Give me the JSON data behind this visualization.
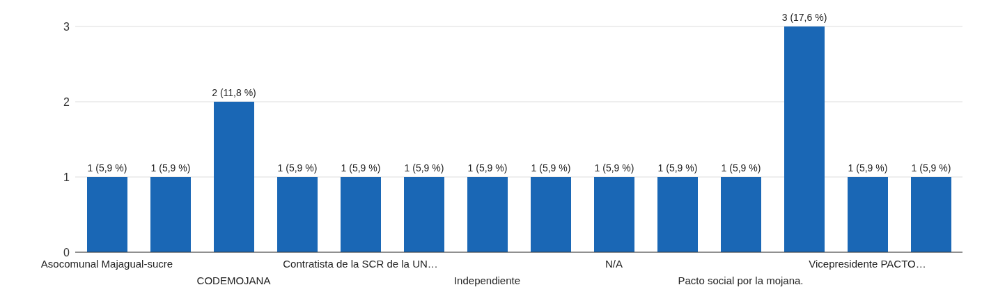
{
  "chart_data": {
    "type": "bar",
    "categories": [
      "Asocomunal Majagual-sucre",
      null,
      "CODEMOJANA",
      null,
      "Contratista de la SCR de la UN…",
      null,
      "Independiente",
      null,
      "N/A",
      null,
      "Pacto social por la mojana.",
      null,
      "Vicepresidente PACTO…",
      null
    ],
    "values": [
      1,
      1,
      2,
      1,
      1,
      1,
      1,
      1,
      1,
      1,
      1,
      3,
      1,
      1
    ],
    "value_labels": [
      "1 (5,9 %)",
      "1 (5,9 %)",
      "2 (11,8 %)",
      "1 (5,9 %)",
      "1 (5,9 %)",
      "1 (5,9 %)",
      "1 (5,9 %)",
      "1 (5,9 %)",
      "1 (5,9 %)",
      "1 (5,9 %)",
      "1 (5,9 %)",
      "3 (17,6 %)",
      "1 (5,9 %)",
      "1 (5,9 %)"
    ],
    "color": "#1a67b5",
    "ylim": [
      0,
      3
    ],
    "yticks": [
      0,
      1,
      2,
      3
    ],
    "grid": "y"
  }
}
